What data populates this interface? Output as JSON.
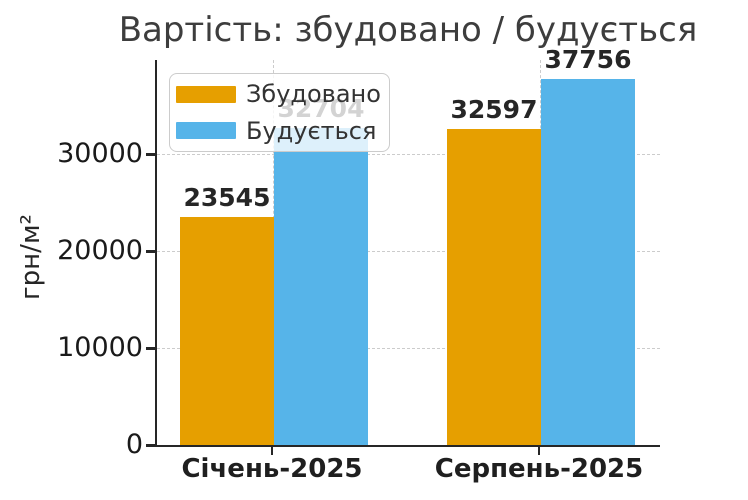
{
  "chart_data": {
    "type": "bar",
    "title": "Вартість: збудовано / будується",
    "ylabel": "грн/м²",
    "xlabel": "",
    "categories": [
      "Січень-2025",
      "Серпень-2025"
    ],
    "series": [
      {
        "name": "Збудовано",
        "color": "#E69F00",
        "values": [
          23545,
          32597
        ]
      },
      {
        "name": "Будується",
        "color": "#56B4E9",
        "values": [
          32704,
          37756
        ]
      }
    ],
    "yticks": [
      0,
      10000,
      20000,
      30000
    ],
    "ylim": [
      0,
      39700
    ],
    "grid": "dashed horizontal at yticks and dashed vertical at category centers",
    "legend_position": "upper left",
    "bar_value_labels": true
  },
  "colors": {
    "grid": "#cccccc",
    "spine": "#262626",
    "title_text": "#3d3d3d",
    "tick_text": "#1a1a1a",
    "bar_label_text": "#262626",
    "background": "#ffffff"
  }
}
